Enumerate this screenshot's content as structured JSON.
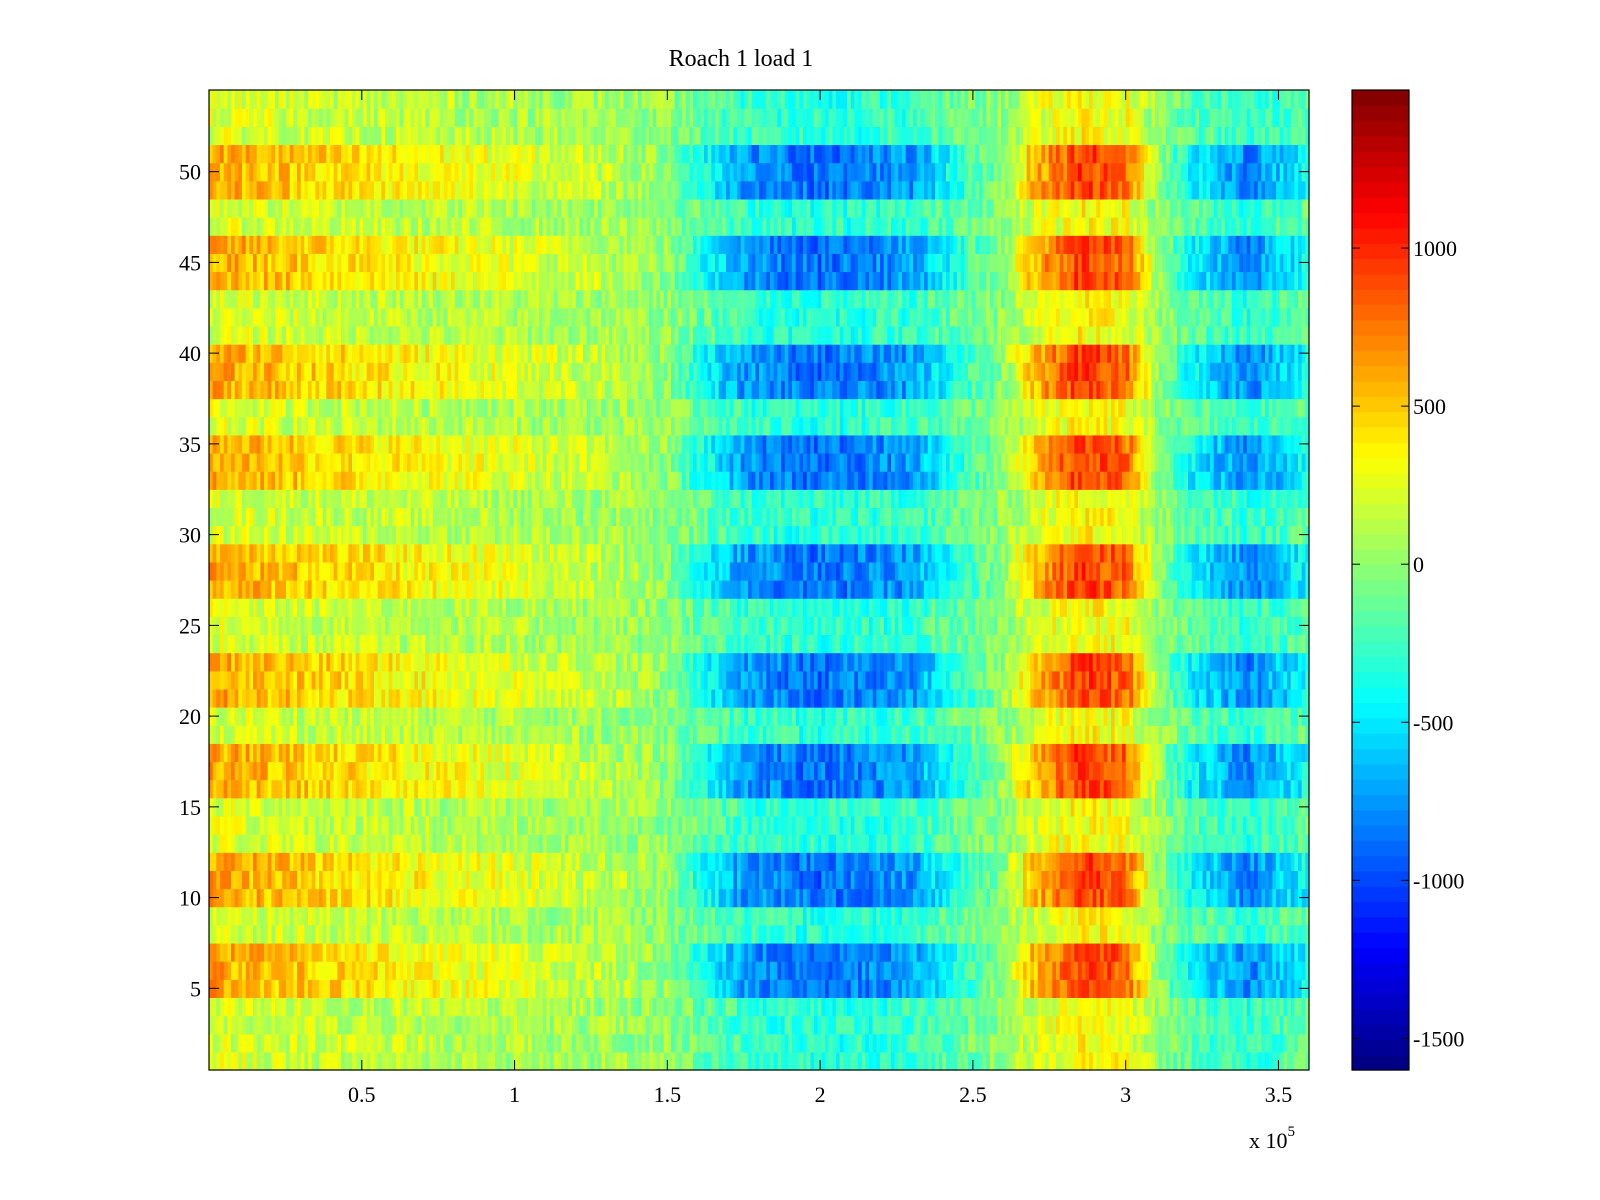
{
  "chart_data": {
    "type": "heatmap",
    "title": "Roach 1 load 1",
    "xlabel": "",
    "ylabel": "",
    "x_multiplier_label": "x 10",
    "x_multiplier_exponent": "5",
    "xlim": [
      0,
      3.6
    ],
    "ylim": [
      0.5,
      54.5
    ],
    "x_ticks": [
      0.5,
      1,
      1.5,
      2,
      2.5,
      3,
      3.5
    ],
    "x_tick_labels": [
      "0.5",
      "1",
      "1.5",
      "2",
      "2.5",
      "3",
      "3.5"
    ],
    "y_ticks": [
      5,
      10,
      15,
      20,
      25,
      30,
      35,
      40,
      45,
      50
    ],
    "y_tick_labels": [
      "5",
      "10",
      "15",
      "20",
      "25",
      "30",
      "35",
      "40",
      "45",
      "50"
    ],
    "rows": 54,
    "colormap": "jet",
    "colorbar": {
      "range": [
        -1600,
        1500
      ],
      "ticks": [
        1000,
        500,
        0,
        -500,
        -1000,
        -1500
      ],
      "tick_labels": [
        "1000",
        "500",
        "0",
        "-500",
        "-1000",
        "-1500"
      ]
    },
    "x_profile_centers": [
      0.0,
      0.2,
      0.5,
      0.9,
      1.3,
      1.5,
      1.6,
      1.75,
      2.0,
      2.3,
      2.45,
      2.6,
      2.7,
      2.85,
      3.0,
      3.1,
      3.2,
      3.4,
      3.6
    ],
    "x_profile_values": [
      450,
      400,
      300,
      200,
      100,
      0,
      -250,
      -550,
      -650,
      -550,
      -250,
      0,
      400,
      700,
      600,
      50,
      -300,
      -600,
      -300
    ],
    "active_rows": [
      5,
      6,
      7,
      10,
      11,
      12,
      16,
      17,
      18,
      21,
      22,
      23,
      27,
      28,
      29,
      33,
      34,
      35,
      38,
      39,
      40,
      44,
      45,
      46,
      49,
      50,
      51
    ],
    "colors": {
      "background": "#ffffff",
      "axes": "#000000"
    }
  }
}
